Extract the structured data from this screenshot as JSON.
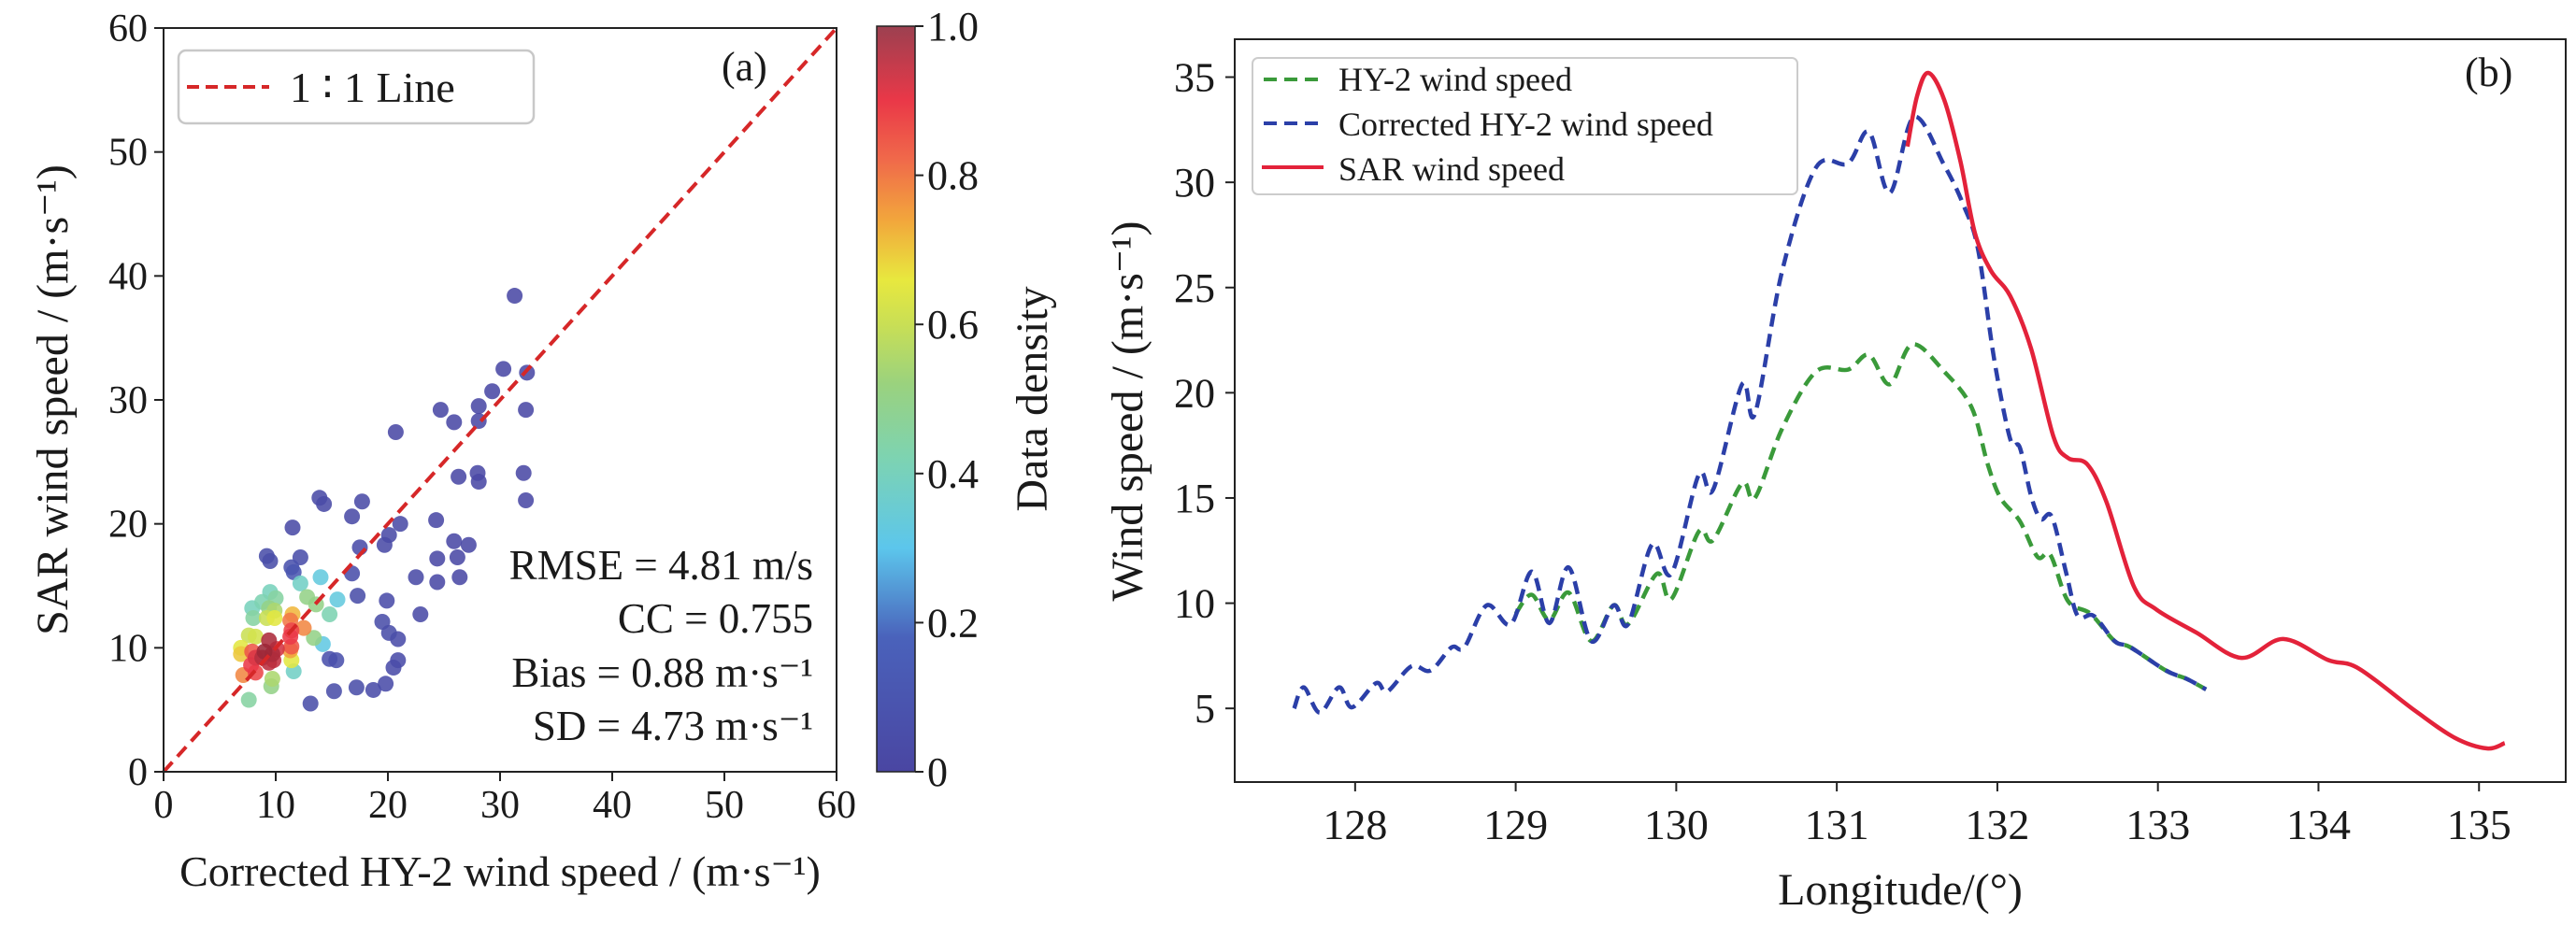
{
  "colors": {
    "one_to_one": "#d62728",
    "hy2": "#2ca02c",
    "corrected": "#2b3fa8",
    "sar": "#e3223a",
    "legend_border": "#cccccc"
  },
  "chart_data": [
    {
      "type": "scatter",
      "panel_label": "(a)",
      "xlabel": "Corrected HY-2 wind speed / (m·s⁻¹)",
      "ylabel": "SAR wind speed / (m·s⁻¹)",
      "xlim": [
        0,
        60
      ],
      "ylim": [
        0,
        60
      ],
      "xticks": [
        "0",
        "10",
        "20",
        "30",
        "40",
        "50",
        "60"
      ],
      "yticks": [
        "0",
        "10",
        "20",
        "30",
        "40",
        "50",
        "60"
      ],
      "legend": {
        "label": "1 ∶ 1 Line",
        "position": "top-left"
      },
      "stats": [
        "RMSE = 4.81 m/s",
        "CC = 0.755",
        "Bias = 0.88 m·s⁻¹",
        "SD = 4.73 m·s⁻¹"
      ],
      "colorbar": {
        "label": "Data density",
        "range": [
          0,
          1
        ],
        "ticks": [
          "0",
          "0.2",
          "0.4",
          "0.6",
          "0.8",
          "1.0"
        ]
      },
      "points": [
        [
          31.3,
          38.4,
          0.02
        ],
        [
          30.3,
          32.5,
          0.02
        ],
        [
          32.4,
          32.2,
          0.02
        ],
        [
          29.3,
          30.7,
          0.02
        ],
        [
          28.1,
          29.5,
          0.02
        ],
        [
          28.1,
          28.3,
          0.02
        ],
        [
          24.7,
          29.2,
          0.02
        ],
        [
          25.9,
          28.2,
          0.02
        ],
        [
          32.3,
          29.2,
          0.02
        ],
        [
          20.7,
          27.4,
          0.02
        ],
        [
          28.0,
          24.1,
          0.02
        ],
        [
          28.1,
          23.4,
          0.02
        ],
        [
          26.3,
          23.8,
          0.02
        ],
        [
          32.1,
          24.1,
          0.02
        ],
        [
          32.3,
          21.9,
          0.02
        ],
        [
          13.9,
          22.1,
          0.03
        ],
        [
          14.3,
          21.6,
          0.03
        ],
        [
          17.7,
          21.8,
          0.03
        ],
        [
          16.8,
          20.6,
          0.03
        ],
        [
          11.5,
          19.7,
          0.03
        ],
        [
          21.1,
          20.0,
          0.03
        ],
        [
          24.3,
          20.3,
          0.02
        ],
        [
          20.1,
          19.1,
          0.03
        ],
        [
          19.7,
          18.3,
          0.03
        ],
        [
          17.5,
          18.1,
          0.04
        ],
        [
          9.2,
          17.4,
          0.05
        ],
        [
          9.5,
          17.0,
          0.05
        ],
        [
          12.2,
          17.3,
          0.06
        ],
        [
          11.4,
          16.5,
          0.08
        ],
        [
          11.6,
          16.1,
          0.1
        ],
        [
          16.8,
          16.0,
          0.06
        ],
        [
          25.9,
          18.6,
          0.02
        ],
        [
          27.2,
          18.3,
          0.02
        ],
        [
          24.4,
          17.2,
          0.02
        ],
        [
          26.2,
          17.3,
          0.02
        ],
        [
          22.5,
          15.7,
          0.03
        ],
        [
          24.4,
          15.3,
          0.02
        ],
        [
          26.4,
          15.7,
          0.02
        ],
        [
          17.3,
          14.2,
          0.05
        ],
        [
          19.9,
          13.8,
          0.04
        ],
        [
          22.9,
          12.7,
          0.03
        ],
        [
          19.5,
          12.1,
          0.05
        ],
        [
          20.1,
          11.2,
          0.05
        ],
        [
          20.9,
          10.7,
          0.04
        ],
        [
          14.8,
          9.1,
          0.07
        ],
        [
          15.4,
          9.0,
          0.07
        ],
        [
          20.9,
          9.0,
          0.04
        ],
        [
          20.5,
          8.4,
          0.04
        ],
        [
          15.2,
          6.5,
          0.05
        ],
        [
          17.2,
          6.8,
          0.05
        ],
        [
          18.7,
          6.6,
          0.04
        ],
        [
          19.8,
          7.1,
          0.04
        ],
        [
          13.1,
          5.5,
          0.05
        ],
        [
          14.0,
          15.7,
          0.33
        ],
        [
          12.2,
          15.2,
          0.38
        ],
        [
          15.5,
          13.9,
          0.33
        ],
        [
          14.2,
          10.3,
          0.32
        ],
        [
          14.8,
          12.7,
          0.42
        ],
        [
          11.6,
          8.1,
          0.38
        ],
        [
          7.6,
          5.8,
          0.45
        ],
        [
          12.8,
          14.1,
          0.5
        ],
        [
          13.6,
          13.5,
          0.5
        ],
        [
          13.4,
          10.8,
          0.5
        ],
        [
          9.7,
          7.5,
          0.55
        ],
        [
          9.6,
          6.9,
          0.5
        ],
        [
          9.5,
          14.5,
          0.4
        ],
        [
          10.0,
          14.0,
          0.45
        ],
        [
          8.8,
          13.7,
          0.42
        ],
        [
          7.9,
          13.2,
          0.4
        ],
        [
          9.4,
          13.2,
          0.5
        ],
        [
          9.9,
          13.0,
          0.55
        ],
        [
          8.0,
          12.4,
          0.45
        ],
        [
          9.2,
          12.4,
          0.6
        ],
        [
          9.9,
          12.4,
          0.65
        ],
        [
          7.6,
          11.0,
          0.6
        ],
        [
          8.2,
          10.9,
          0.62
        ],
        [
          6.9,
          10.0,
          0.65
        ],
        [
          11.5,
          12.7,
          0.72
        ],
        [
          11.4,
          9.0,
          0.65
        ],
        [
          11.3,
          12.2,
          0.8
        ],
        [
          12.5,
          11.6,
          0.78
        ],
        [
          11.4,
          11.4,
          0.88
        ],
        [
          11.3,
          10.9,
          0.9
        ],
        [
          11.4,
          10.1,
          0.85
        ],
        [
          11.3,
          9.8,
          0.75
        ],
        [
          6.9,
          9.5,
          0.7
        ],
        [
          7.1,
          7.8,
          0.78
        ],
        [
          7.9,
          9.7,
          0.85
        ],
        [
          7.8,
          8.6,
          0.9
        ],
        [
          8.2,
          8.0,
          0.88
        ],
        [
          8.2,
          9.2,
          0.92
        ],
        [
          9.4,
          10.6,
          0.98
        ],
        [
          9.0,
          9.7,
          1.0
        ],
        [
          8.8,
          9.2,
          0.97
        ],
        [
          9.7,
          9.5,
          0.98
        ],
        [
          9.8,
          9.0,
          0.95
        ],
        [
          9.4,
          8.8,
          0.96
        ],
        [
          10.1,
          9.9,
          0.93
        ]
      ]
    },
    {
      "type": "line",
      "panel_label": "(b)",
      "xlabel": "Longitude/(°)",
      "ylabel": "Wind speed / (m·s⁻¹)",
      "xlim": [
        127.25,
        135.54
      ],
      "ylim": [
        1.5,
        36.8
      ],
      "xticks": [
        "128",
        "129",
        "130",
        "131",
        "132",
        "133",
        "134",
        "135"
      ],
      "yticks": [
        "5",
        "10",
        "15",
        "20",
        "25",
        "30",
        "35"
      ],
      "legend_position": "top-left",
      "series": [
        {
          "name": "HY-2 wind speed",
          "style": "dashed",
          "x": [
            129.0,
            129.1,
            129.21,
            129.33,
            129.47,
            129.61,
            129.7,
            129.88,
            129.97,
            130.14,
            130.23,
            130.41,
            130.49,
            130.66,
            130.87,
            131.07,
            131.2,
            131.33,
            131.47,
            131.67,
            131.84,
            131.94,
            132.02,
            132.14,
            132.25,
            132.33,
            132.44,
            132.58,
            132.73,
            132.83,
            133.05,
            133.18,
            133.3
          ],
          "y": [
            9.5,
            10.4,
            9.2,
            10.5,
            8.2,
            9.9,
            9.0,
            11.4,
            10.2,
            13.4,
            13.0,
            15.7,
            15.0,
            18.3,
            21.0,
            21.1,
            21.8,
            20.4,
            22.3,
            21.0,
            19.3,
            16.6,
            15.0,
            13.9,
            12.2,
            12.3,
            10.1,
            9.5,
            8.2,
            7.9,
            6.8,
            6.4,
            5.9
          ]
        },
        {
          "name": "Corrected HY-2 wind speed",
          "style": "dashed",
          "x": [
            127.62,
            127.68,
            127.78,
            127.9,
            127.98,
            128.13,
            128.2,
            128.35,
            128.47,
            128.6,
            128.68,
            128.82,
            128.97,
            129.1,
            129.21,
            129.33,
            129.47,
            129.61,
            129.7,
            129.85,
            129.97,
            130.14,
            130.23,
            130.41,
            130.49,
            130.66,
            130.87,
            131.07,
            131.2,
            131.33,
            131.48,
            131.67,
            131.79,
            131.88,
            131.98,
            132.08,
            132.14,
            132.21,
            132.27,
            132.34,
            132.43,
            132.5,
            132.6,
            132.73,
            132.83,
            133.05,
            133.18,
            133.3
          ],
          "y": [
            5.0,
            6.0,
            4.8,
            6.0,
            5.05,
            6.2,
            5.8,
            7.0,
            6.8,
            7.9,
            7.9,
            9.9,
            9.0,
            11.5,
            9.05,
            11.7,
            8.2,
            9.9,
            9.0,
            12.8,
            11.4,
            16.1,
            15.4,
            20.4,
            19.0,
            25.8,
            30.7,
            30.9,
            32.4,
            29.5,
            33.1,
            30.8,
            28.9,
            26.8,
            21.6,
            17.8,
            17.4,
            15.1,
            14.0,
            14.1,
            11.4,
            9.4,
            9.4,
            8.2,
            7.9,
            6.8,
            6.4,
            5.9
          ]
        },
        {
          "name": "SAR wind speed",
          "style": "solid",
          "x": [
            131.44,
            131.5,
            131.57,
            131.67,
            131.77,
            131.86,
            131.96,
            132.08,
            132.21,
            132.35,
            132.44,
            132.56,
            132.68,
            132.85,
            132.99,
            133.24,
            133.52,
            133.78,
            134.06,
            134.25,
            134.6,
            134.85,
            135.05,
            135.16
          ],
          "y": [
            31.7,
            34.1,
            35.2,
            33.9,
            31.0,
            27.6,
            25.8,
            24.6,
            22.1,
            17.9,
            16.9,
            16.6,
            14.8,
            10.8,
            9.7,
            8.6,
            7.4,
            8.3,
            7.3,
            6.9,
            4.9,
            3.6,
            3.1,
            3.35
          ]
        }
      ]
    }
  ]
}
